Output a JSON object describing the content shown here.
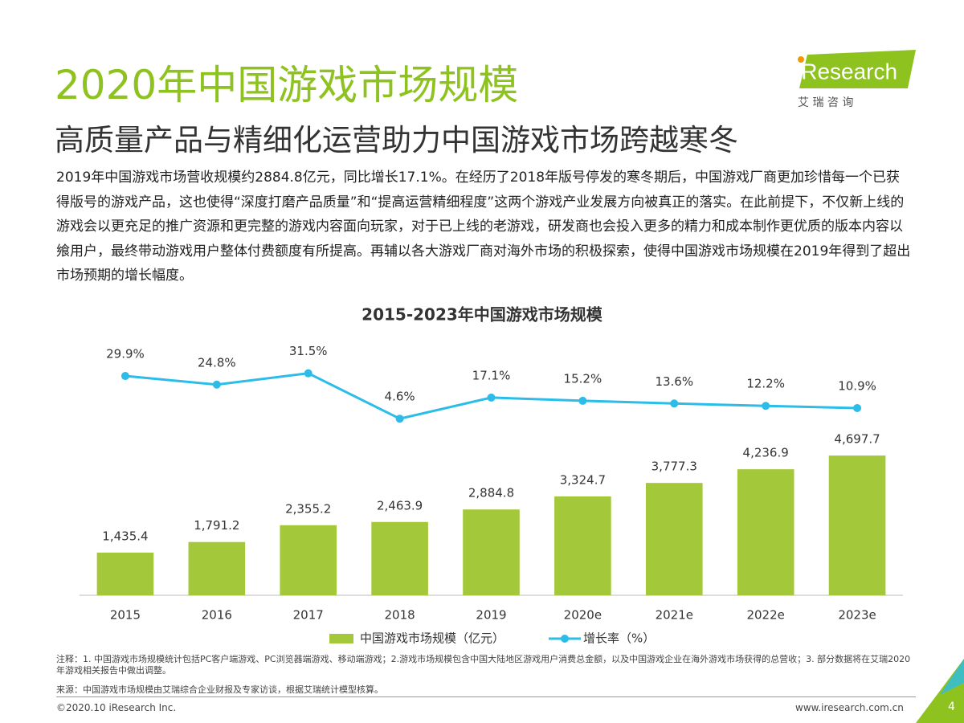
{
  "header": {
    "title": "2020年中国游戏市场规模",
    "subtitle": "高质量产品与精细化运营助力中国游戏市场跨越寒冬",
    "logo": "iResearch",
    "logo_subtitle": "艾 瑞 咨 询"
  },
  "body": "2019年中国游戏市场营收规模约2884.8亿元，同比增长17.1%。在经历了2018年版号停发的寒冬期后，中国游戏厂商更加珍惜每一个已获得版号的游戏产品，这也使得“深度打磨产品质量”和“提高运营精细程度”这两个游戏产业发展方向被真正的落实。在此前提下，不仅新上线的游戏会以更充足的推广资源和更完整的游戏内容面向玩家，对于已上线的老游戏，研发商也会投入更多的精力和成本制作更优质的版本内容以飨用户，最终带动游戏用户整体付费额度有所提高。再辅以各大游戏厂商对海外市场的积极探索，使得中国游戏市场规模在2019年得到了超出市场预期的增长幅度。",
  "chart_data": {
    "type": "bar",
    "title": "2015-2023年中国游戏市场规模",
    "categories": [
      "2015",
      "2016",
      "2017",
      "2018",
      "2019",
      "2020e",
      "2021e",
      "2022e",
      "2023e"
    ],
    "series": [
      {
        "name": "中国游戏市场规模（亿元）",
        "type": "bar",
        "color": "#a3c93a",
        "values": [
          1435.4,
          1791.2,
          2355.2,
          2463.9,
          2884.8,
          3324.7,
          3777.3,
          4236.9,
          4697.7
        ],
        "value_labels": [
          "1,435.4",
          "1,791.2",
          "2,355.2",
          "2,463.9",
          "2,884.8",
          "3,324.7",
          "3,777.3",
          "4,236.9",
          "4,697.7"
        ]
      },
      {
        "name": "增长率（%）",
        "type": "line",
        "axis": "y2",
        "color": "#2bbde8",
        "values": [
          29.9,
          24.8,
          31.5,
          4.6,
          17.1,
          15.2,
          13.6,
          12.2,
          10.9
        ],
        "value_labels": [
          "29.9%",
          "24.8%",
          "31.5%",
          "4.6%",
          "17.1%",
          "15.2%",
          "13.6%",
          "12.2%",
          "10.9%"
        ]
      }
    ],
    "ylim": [
      0,
      8400
    ],
    "y2lim": [
      -100,
      48
    ],
    "legend": "bottom"
  },
  "notes": "注释：1. 中国游戏市场规模统计包括PC客户端游戏、PC浏览器端游戏、移动端游戏；2.游戏市场规模包含中国大陆地区游戏用户消费总金额，以及中国游戏企业在海外游戏市场获得的总营收；3. 部分数据将在艾瑞2020年游戏相关报告中做出调整。",
  "source": "来源：中国游戏市场规模由艾瑞综合企业财报及专家访谈，根据艾瑞统计模型核算。",
  "footer": {
    "copyright": "©2020.10 iResearch Inc.",
    "website": "www.iresearch.com.cn",
    "page": "4"
  }
}
